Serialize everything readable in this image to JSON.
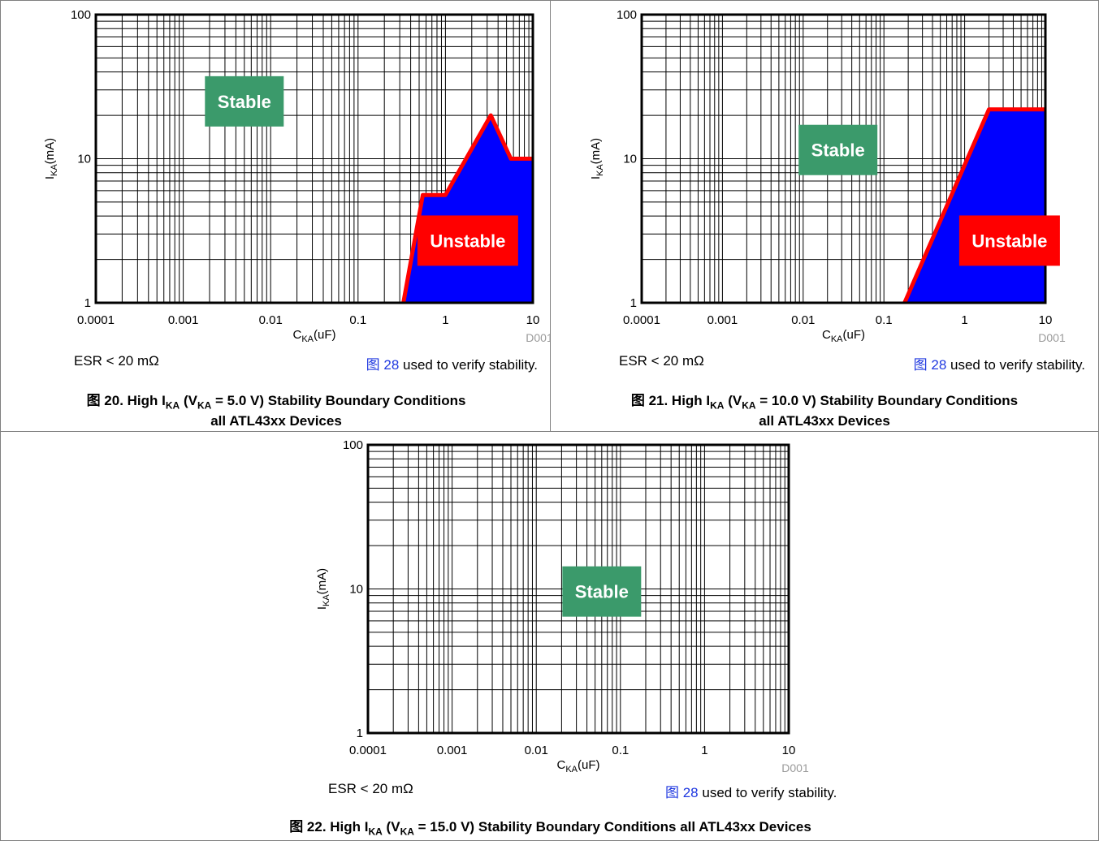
{
  "figures": [
    {
      "caption": {
        "prefix": "图 20. High I",
        "ika_sub": "KA",
        "mid": " (V",
        "vka_sub": "KA",
        "rest": " = 5.0 V) Stability Boundary Conditions",
        "line2": "all ATL43xx Devices"
      },
      "note_left": "ESR < 20 mΩ",
      "note_link": "图 28",
      "note_right": " used to verify stability.",
      "source_code": "D001"
    },
    {
      "caption": {
        "prefix": "图 21. High I",
        "ika_sub": "KA",
        "mid": " (V",
        "vka_sub": "KA",
        "rest": " = 10.0 V) Stability Boundary Conditions",
        "line2": "all ATL43xx Devices"
      },
      "note_left": "ESR < 20 mΩ",
      "note_link": "图 28",
      "note_right": " used to verify stability.",
      "source_code": "D001"
    },
    {
      "caption": {
        "prefix": "图 22. High I",
        "ika_sub": "KA",
        "mid": " (V",
        "vka_sub": "KA",
        "rest": " = 15.0 V) Stability Boundary Conditions all ATL43xx Devices",
        "line2": ""
      },
      "note_left": "ESR < 20 mΩ",
      "note_link": "图 28",
      "note_right": " used to verify stability.",
      "source_code": "D001"
    }
  ],
  "chart_data": [
    {
      "type": "area",
      "xlabel": "C",
      "xlabel_sub": "KA",
      "xlabel_unit": "(uF)",
      "ylabel": "I",
      "ylabel_sub": "KA",
      "ylabel_unit": "(mA)",
      "x_scale": "log",
      "y_scale": "log",
      "xlim": [
        0.0001,
        10
      ],
      "ylim": [
        1,
        100
      ],
      "x_ticks": [
        "0.0001",
        "0.001",
        "0.01",
        "0.1",
        "1",
        "10"
      ],
      "y_ticks": [
        "1",
        "10",
        "100"
      ],
      "grid": true,
      "colors": {
        "unstable_fill": "#0000ff",
        "boundary": "#ff0000",
        "stable_box": "#3b9a6b",
        "unstable_box": "#ff0000"
      },
      "regions": [
        {
          "name": "Stable",
          "x": 0.005,
          "y": 25
        },
        {
          "name": "Unstable",
          "x": 1.8,
          "y": 2.7
        }
      ],
      "boundary": {
        "x": [
          0.33,
          0.55,
          1,
          3.3,
          5.6,
          10
        ],
        "y": [
          1,
          5.6,
          5.6,
          20,
          10,
          10
        ]
      }
    },
    {
      "type": "area",
      "xlabel": "C",
      "xlabel_sub": "KA",
      "xlabel_unit": "(uF)",
      "ylabel": "I",
      "ylabel_sub": "KA",
      "ylabel_unit": "(mA)",
      "x_scale": "log",
      "y_scale": "log",
      "xlim": [
        0.0001,
        10
      ],
      "ylim": [
        1,
        100
      ],
      "x_ticks": [
        "0.0001",
        "0.001",
        "0.01",
        "0.1",
        "1",
        "10"
      ],
      "y_ticks": [
        "1",
        "10",
        "100"
      ],
      "grid": true,
      "colors": {
        "unstable_fill": "#0000ff",
        "boundary": "#ff0000",
        "stable_box": "#3b9a6b",
        "unstable_box": "#ff0000"
      },
      "regions": [
        {
          "name": "Stable",
          "x": 0.027,
          "y": 11.5
        },
        {
          "name": "Unstable",
          "x": 3.6,
          "y": 2.7
        }
      ],
      "boundary": {
        "x": [
          0.18,
          2,
          10
        ],
        "y": [
          1,
          22,
          22
        ]
      }
    },
    {
      "type": "area",
      "xlabel": "C",
      "xlabel_sub": "KA",
      "xlabel_unit": "(uF)",
      "ylabel": "I",
      "ylabel_sub": "KA",
      "ylabel_unit": "(mA)",
      "x_scale": "log",
      "y_scale": "log",
      "xlim": [
        0.0001,
        10
      ],
      "ylim": [
        1,
        100
      ],
      "x_ticks": [
        "0.0001",
        "0.001",
        "0.01",
        "0.1",
        "1",
        "10"
      ],
      "y_ticks": [
        "1",
        "10",
        "100"
      ],
      "grid": true,
      "colors": {
        "unstable_fill": "#0000ff",
        "boundary": "#ff0000",
        "stable_box": "#3b9a6b",
        "unstable_box": "#ff0000"
      },
      "regions": [
        {
          "name": "Stable",
          "x": 0.06,
          "y": 9.6
        }
      ],
      "boundary": null
    }
  ]
}
